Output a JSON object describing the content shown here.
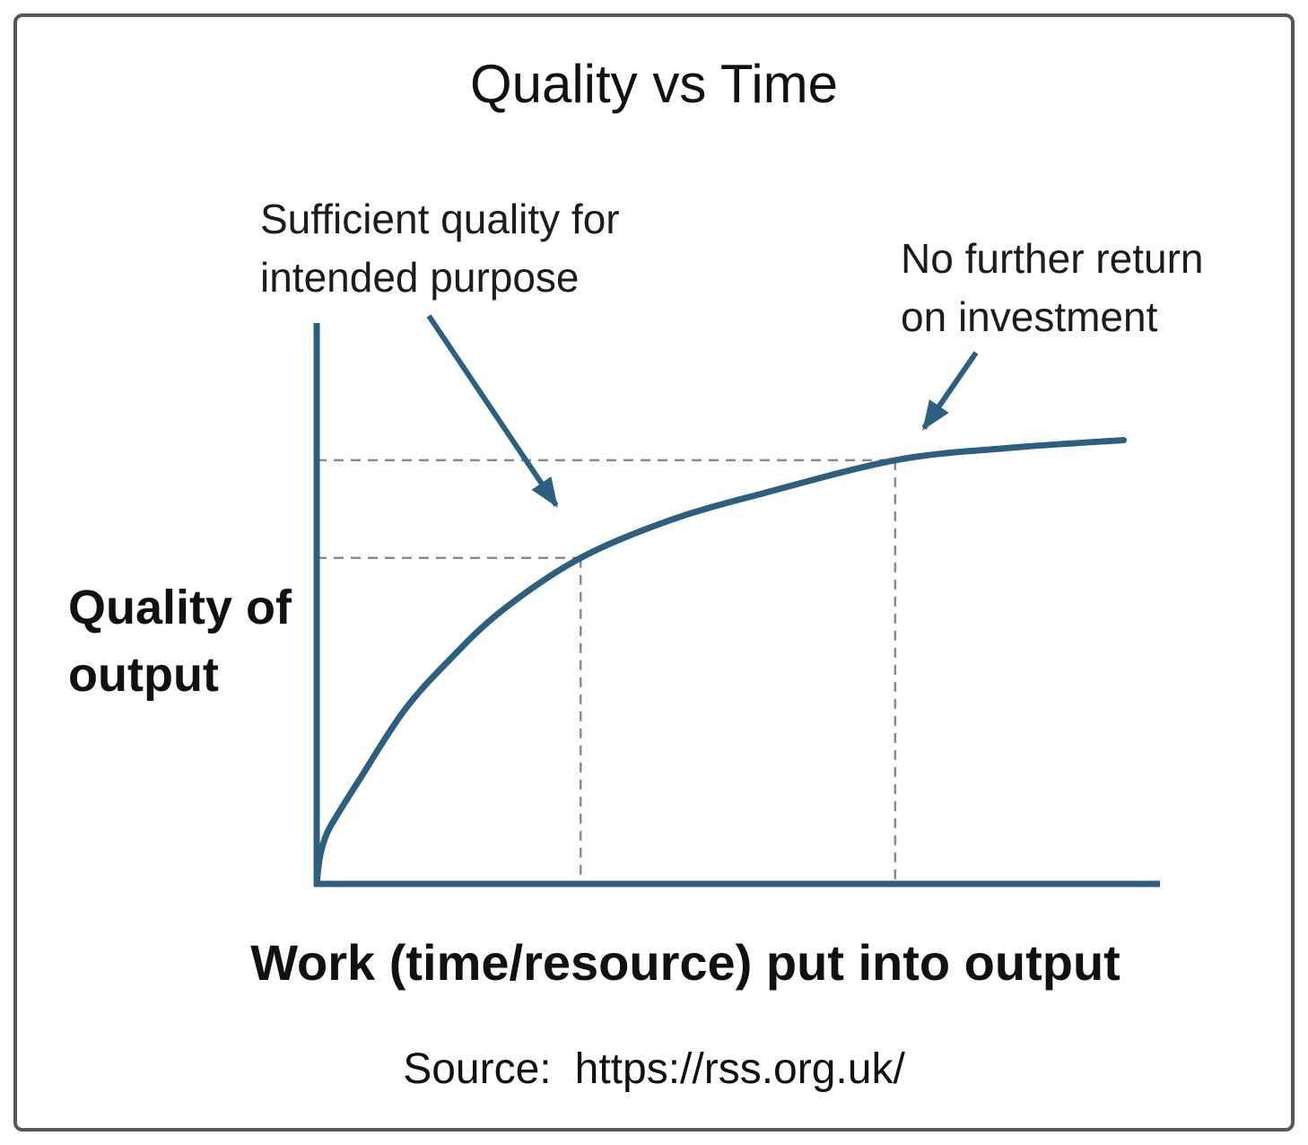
{
  "chart_data": {
    "type": "line",
    "title": "Quality vs Time",
    "xlabel": "Work (time/resource) put into output",
    "ylabel": "Quality of\noutput",
    "x_ticks": [],
    "y_ticks": [],
    "grid": "off",
    "legend": "none",
    "series": [
      {
        "name": "quality-of-output-curve",
        "shape": "diminishing-returns (steep rise then plateau)",
        "points_norm": [
          [
            0.0,
            0.0
          ],
          [
            0.004,
            0.05
          ],
          [
            0.012,
            0.09
          ],
          [
            0.025,
            0.125
          ],
          [
            0.05,
            0.185
          ],
          [
            0.103,
            0.309
          ],
          [
            0.156,
            0.399
          ],
          [
            0.22,
            0.49
          ],
          [
            0.313,
            0.584
          ],
          [
            0.42,
            0.652
          ],
          [
            0.53,
            0.7
          ],
          [
            0.686,
            0.759
          ],
          [
            0.82,
            0.781
          ],
          [
            0.957,
            0.795
          ]
        ]
      }
    ],
    "reference_points": [
      {
        "id": "sufficient-quality",
        "x_norm": 0.313,
        "y_norm": 0.584,
        "annotation": "Sufficient quality for\nintended purpose"
      },
      {
        "id": "no-further-return",
        "x_norm": 0.686,
        "y_norm": 0.759,
        "annotation": "No further return\non investment"
      }
    ],
    "source": {
      "label": "Source:",
      "url": "https://rss.org.uk/"
    },
    "colors": {
      "curve": "#2d5f80",
      "axis": "#2d5f80",
      "dashed_guides": "#8a8a8a",
      "text": "#1a1a1a",
      "frame_border": "#57585a",
      "background": "#ffffff"
    }
  }
}
